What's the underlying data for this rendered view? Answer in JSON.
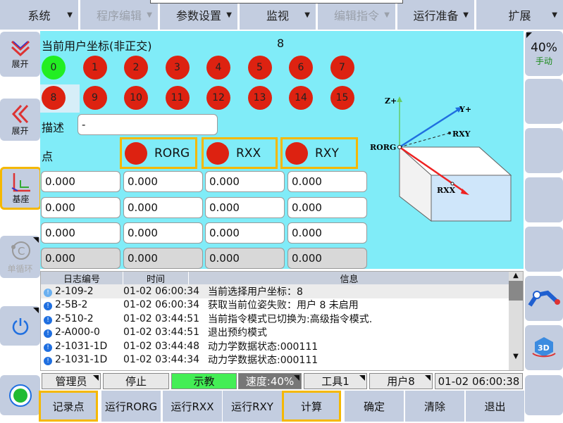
{
  "menu": [
    {
      "label": "系统",
      "enabled": true
    },
    {
      "label": "程序编辑",
      "enabled": false
    },
    {
      "label": "参数设置",
      "enabled": true
    },
    {
      "label": "监视",
      "enabled": true
    },
    {
      "label": "编辑指令",
      "enabled": false
    },
    {
      "label": "运行准备",
      "enabled": true
    },
    {
      "label": "扩展",
      "enabled": true
    }
  ],
  "left": {
    "expand1": "展开",
    "expand2": "展开",
    "base": "基座",
    "cycle": "单循环"
  },
  "right": {
    "speed": "40%",
    "mode": "手动"
  },
  "main": {
    "title": "当前用户坐标(非正交)",
    "current": "8",
    "coords": [
      "0",
      "1",
      "2",
      "3",
      "4",
      "5",
      "6",
      "7",
      "8",
      "9",
      "10",
      "11",
      "12",
      "13",
      "14",
      "15"
    ],
    "active": "0",
    "selected": "8",
    "desc_label": "描述",
    "desc_value": "-",
    "point_label": "点",
    "points": [
      "RORG",
      "RXX",
      "RXY"
    ],
    "values": [
      [
        "0.000",
        "0.000",
        "0.000",
        "0.000"
      ],
      [
        "0.000",
        "0.000",
        "0.000",
        "0.000"
      ],
      [
        "0.000",
        "0.000",
        "0.000",
        "0.000"
      ],
      [
        "0.000",
        "0.000",
        "0.000",
        "0.000"
      ]
    ],
    "diagram": {
      "z": "Z+",
      "y": "Y+",
      "rxy": "RXY",
      "rorg": "RORG",
      "rxx": "RXX"
    }
  },
  "log": {
    "headers": [
      "日志编号",
      "时间",
      "信息"
    ],
    "rows": [
      [
        "2-109-2",
        "01-02 06:00:34",
        "当前选择用户坐标：8"
      ],
      [
        "2-5B-2",
        "01-02 06:00:34",
        "获取当前位姿失败：用户 8 未启用"
      ],
      [
        "2-510-2",
        "01-02 03:44:51",
        "当前指令模式已切换为:高级指令模式."
      ],
      [
        "2-A000-0",
        "01-02 03:44:51",
        "退出预约模式"
      ],
      [
        "2-1031-1D",
        "01-02 03:44:48",
        "动力学数据状态:000111"
      ],
      [
        "2-1031-1D",
        "01-02 03:44:34",
        "动力学数据状态:000111"
      ]
    ]
  },
  "status": {
    "user": "管理员",
    "run": "停止",
    "mode": "示教",
    "speed": "速度:40%",
    "tool": "工具1",
    "usercoord": "用户8",
    "time": "01-02 06:00:38"
  },
  "buttons": [
    "记录点",
    "运行RORG",
    "运行RXX",
    "运行RXY",
    "计算",
    "确定",
    "清除",
    "退出"
  ],
  "colors": {
    "accent": "#f5b800",
    "panel": "#80ecf8",
    "red": "#dd2211",
    "green": "#22ee22"
  }
}
